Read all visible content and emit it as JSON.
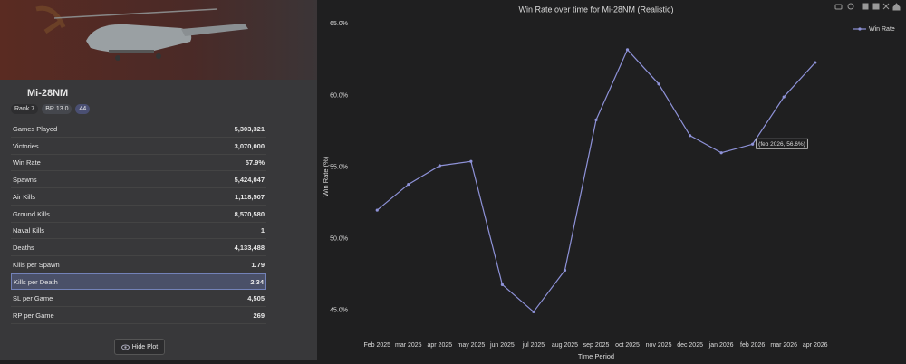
{
  "panel": {
    "vehicle_name": "Mi-28NM",
    "badges": [
      "Rank 7",
      "BR 13.0",
      "44"
    ],
    "stats": [
      {
        "label": "Games Played",
        "value": "5,303,321"
      },
      {
        "label": "Victories",
        "value": "3,070,000"
      },
      {
        "label": "Win Rate",
        "value": "57.9%"
      },
      {
        "label": "Spawns",
        "value": "5,424,047"
      },
      {
        "label": "Air Kills",
        "value": "1,118,507"
      },
      {
        "label": "Ground Kills",
        "value": "8,570,580"
      },
      {
        "label": "Naval Kills",
        "value": "1"
      },
      {
        "label": "Deaths",
        "value": "4,133,488"
      },
      {
        "label": "Kills per Spawn",
        "value": "1.79"
      },
      {
        "label": "Kills per Death",
        "value": "2.34",
        "selected": true
      },
      {
        "label": "SL per Game",
        "value": "4,505"
      },
      {
        "label": "RP per Game",
        "value": "269"
      }
    ],
    "button": "Hide Plot"
  },
  "chart_data": {
    "type": "line",
    "title": "Win Rate over time for Mi-28NM (Realistic)",
    "x_label": "Time Period",
    "y_label": "Win Rate (%)",
    "categories": [
      "Feb 2025",
      "mar 2025",
      "apr 2025",
      "may 2025",
      "jun 2025",
      "jul 2025",
      "aug 2025",
      "sep 2025",
      "oct 2025",
      "nov 2025",
      "dec 2025",
      "jan 2026",
      "feb 2026",
      "mar 2026",
      "apr 2026"
    ],
    "series": [
      {
        "name": "Win Rate",
        "color": "#8e92d8",
        "values": [
          52.0,
          53.8,
          55.1,
          55.4,
          46.8,
          44.9,
          47.8,
          58.3,
          63.2,
          60.8,
          57.2,
          56.0,
          56.6,
          59.9,
          62.3
        ]
      }
    ],
    "ylim": [
      43.6,
      65.4
    ],
    "yticks": [
      {
        "value": 45,
        "label": "45.0%"
      },
      {
        "value": 50,
        "label": "50.0%"
      },
      {
        "value": 55,
        "label": "55.0%"
      },
      {
        "value": 60,
        "label": "60.0%"
      },
      {
        "value": 65,
        "label": "65.0%"
      }
    ],
    "grid": false,
    "legend": "top-right",
    "annotation": "(feb 2026, 56.6%)"
  }
}
